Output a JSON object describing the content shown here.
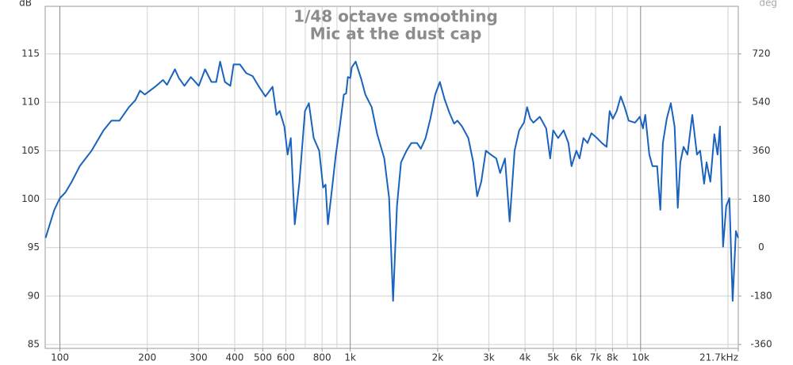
{
  "chart_data": {
    "type": "line",
    "title": "1/48 octave smoothing",
    "subtitle": "Mic at the dust cap",
    "y_label": "dB",
    "y2_label": "deg",
    "log_x": true,
    "grid": true,
    "color": "#1a63bd",
    "xlim": [
      89,
      21700
    ],
    "xticks": [
      100,
      200,
      300,
      400,
      500,
      600,
      800,
      {
        "value": 1000,
        "label": "1k"
      },
      {
        "value": 2000,
        "label": "2k"
      },
      {
        "value": 3000,
        "label": "3k"
      },
      {
        "value": 4000,
        "label": "4k"
      },
      {
        "value": 5000,
        "label": "5k"
      },
      {
        "value": 6000,
        "label": "6k"
      },
      {
        "value": 7000,
        "label": "7k"
      },
      {
        "value": 8000,
        "label": "8k"
      },
      {
        "value": 10000,
        "label": "10k"
      },
      {
        "value": 21700,
        "label": "21.7kHz"
      }
    ],
    "xgrid": [
      700,
      900,
      9000,
      20000
    ],
    "ylim": [
      84.6,
      119.9
    ],
    "yticks": [
      85,
      90,
      95,
      100,
      105,
      110,
      115
    ],
    "y2lim": [
      -374.4,
      896.4
    ],
    "y2ticks": [
      -360,
      -180,
      0,
      180,
      360,
      540,
      720
    ],
    "x": [
      89.3,
      92.1,
      95.7,
      100,
      104.5,
      109.9,
      117,
      128.6,
      141.4,
      150.5,
      160.3,
      172.9,
      181.8,
      188.8,
      196,
      212.8,
      226.5,
      233.8,
      249,
      257,
      268.5,
      282.5,
      300.9,
      316.2,
      332.6,
      345.3,
      356.3,
      370,
      386.6,
      396.6,
      416.8,
      438.3,
      461.3,
      485.1,
      510.3,
      540.1,
      557.3,
      571.5,
      593.2,
      608.4,
      624,
      644,
      668.3,
      698.3,
      720.4,
      748.4,
      781.6,
      806.8,
      822.1,
      837.6,
      864.9,
      892.3,
      920.4,
      950.6,
      968.3,
      981.7,
      1000,
      1012,
      1044,
      1091,
      1127,
      1185,
      1239,
      1310,
      1361,
      1405,
      1449,
      1496,
      1563,
      1623,
      1698,
      1751,
      1818,
      1888,
      1961,
      2036,
      2114,
      2197,
      2280,
      2339,
      2428,
      2552,
      2653,
      2735,
      2826,
      2932,
      3047,
      3184,
      3283,
      3412,
      3540,
      3681,
      3819,
      3964,
      4065,
      4169,
      4276,
      4495,
      4730,
      4883,
      5000,
      5200,
      5433,
      5641,
      5783,
      6009,
      6162,
      6358,
      6566,
      6771,
      7079,
      7350,
      7637,
      7825,
      8023,
      8275,
      8546,
      8810,
      9100,
      9572,
      9937,
      10190,
      10380,
      10714,
      10990,
      11403,
      11695,
      11935,
      12303,
      12706,
      13100,
      13430,
      13700,
      14060,
      14500,
      15070,
      15640,
      16040,
      16550,
      16870,
      17390,
      17950,
      18420,
      18760,
      19230,
      19720,
      20230,
      20750,
      21290,
      21680
    ],
    "values": [
      96.0,
      97.3,
      98.9,
      100.1,
      100.7,
      101.8,
      103.4,
      105.0,
      107.1,
      108.1,
      108.1,
      109.5,
      110.2,
      111.2,
      110.8,
      111.6,
      112.3,
      111.8,
      113.4,
      112.5,
      111.7,
      112.6,
      111.7,
      113.4,
      112.1,
      112.1,
      114.2,
      112.1,
      111.7,
      113.9,
      113.9,
      113.0,
      112.7,
      111.6,
      110.6,
      111.6,
      108.7,
      109.1,
      107.5,
      104.6,
      106.3,
      97.4,
      101.8,
      109.1,
      109.9,
      106.3,
      105.0,
      101.2,
      101.5,
      97.4,
      101.0,
      104.6,
      107.5,
      110.8,
      110.9,
      112.6,
      112.5,
      113.6,
      114.2,
      112.4,
      110.8,
      109.5,
      106.7,
      104.2,
      100.1,
      89.5,
      99.3,
      103.8,
      105.0,
      105.8,
      105.8,
      105.2,
      106.3,
      108.3,
      110.8,
      112.1,
      110.3,
      108.9,
      107.8,
      108.1,
      107.5,
      106.3,
      103.8,
      100.3,
      101.8,
      105.0,
      104.6,
      104.2,
      102.7,
      104.2,
      97.7,
      105.0,
      107.1,
      107.9,
      109.5,
      108.3,
      107.9,
      108.5,
      107.3,
      104.2,
      107.1,
      106.3,
      107.1,
      105.8,
      103.4,
      105.0,
      104.2,
      106.3,
      105.8,
      106.8,
      106.3,
      105.8,
      105.4,
      109.1,
      108.3,
      109.1,
      110.6,
      109.5,
      108.1,
      107.9,
      108.5,
      107.3,
      108.7,
      104.6,
      103.4,
      103.4,
      98.9,
      105.8,
      108.3,
      109.9,
      107.5,
      99.1,
      103.8,
      105.4,
      104.6,
      108.7,
      104.6,
      105.0,
      101.6,
      103.8,
      101.8,
      106.7,
      104.6,
      107.5,
      95.1,
      99.3,
      100.1,
      89.5,
      96.7,
      96.0
    ]
  }
}
